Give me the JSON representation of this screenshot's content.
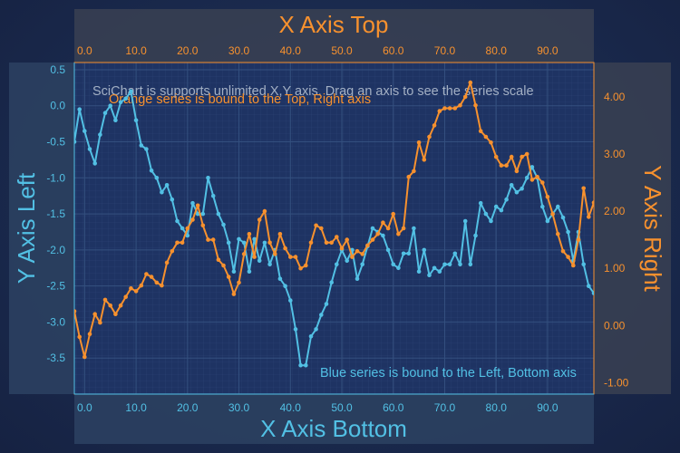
{
  "chart_data": {
    "type": "line",
    "axes": {
      "x_top": {
        "title": "X Axis Top",
        "range": [
          -2,
          99
        ],
        "ticks": [
          "0.0",
          "10.0",
          "20.0",
          "30.0",
          "40.0",
          "50.0",
          "60.0",
          "70.0",
          "80.0",
          "90.0"
        ],
        "color": "#f7912e"
      },
      "x_bottom": {
        "title": "X Axis Bottom",
        "range": [
          -2,
          99
        ],
        "ticks": [
          "0.0",
          "10.0",
          "20.0",
          "30.0",
          "40.0",
          "50.0",
          "60.0",
          "70.0",
          "80.0",
          "90.0"
        ],
        "color": "#52c0e4"
      },
      "y_left": {
        "title": "Y Axis Left",
        "range": [
          -4.0,
          0.6
        ],
        "ticks": [
          "0.5",
          "0.0",
          "-0.5",
          "-1.0",
          "-1.5",
          "-2.0",
          "-2.5",
          "-3.0",
          "-3.5"
        ],
        "color": "#52c0e4"
      },
      "y_right": {
        "title": "Y Axis Right",
        "range": [
          -1.2,
          4.6
        ],
        "ticks": [
          "4.00",
          "3.00",
          "2.00",
          "1.00",
          "0.00",
          "-1.00"
        ],
        "color": "#f7912e"
      }
    },
    "annotations": [
      "SciChart is supports unlimited X,Y axis. Drag an axis to see the series scale",
      "Orange series is bound to the Top, Right axis",
      "Blue series is bound to the Left, Bottom axis"
    ],
    "series": [
      {
        "color": "#52c0e4",
        "x": [
          -2,
          -1,
          0,
          1,
          2,
          3,
          4,
          5,
          6,
          7,
          8,
          9,
          10,
          11,
          12,
          13,
          14,
          15,
          16,
          17,
          18,
          19,
          20,
          21,
          22,
          23,
          24,
          25,
          26,
          27,
          28,
          29,
          30,
          31,
          32,
          33,
          34,
          35,
          36,
          37,
          38,
          39,
          40,
          41,
          42,
          43,
          44,
          45,
          46,
          47,
          48,
          49,
          50,
          51,
          52,
          53,
          54,
          55,
          56,
          57,
          58,
          59,
          60,
          61,
          62,
          63,
          64,
          65,
          66,
          67,
          68,
          69,
          70,
          71,
          72,
          73,
          74,
          75,
          76,
          77,
          78,
          79,
          80,
          81,
          82,
          83,
          84,
          85,
          86,
          87,
          88,
          89,
          90,
          91,
          92,
          93,
          94,
          95,
          96,
          97,
          98,
          99
        ],
        "y": [
          -0.5,
          -0.05,
          -0.35,
          -0.6,
          -0.8,
          -0.4,
          -0.1,
          0.0,
          -0.2,
          0.05,
          0.1,
          0.2,
          -0.2,
          -0.55,
          -0.6,
          -0.9,
          -1.0,
          -1.2,
          -1.1,
          -1.3,
          -1.6,
          -1.7,
          -1.8,
          -1.35,
          -1.5,
          -1.5,
          -1.0,
          -1.25,
          -1.5,
          -1.65,
          -1.9,
          -2.3,
          -1.85,
          -1.9,
          -2.3,
          -1.85,
          -2.15,
          -1.9,
          -2.2,
          -2.0,
          -2.4,
          -2.5,
          -2.7,
          -3.1,
          -3.6,
          -3.6,
          -3.2,
          -3.1,
          -2.9,
          -2.75,
          -2.45,
          -2.2,
          -2.0,
          -2.15,
          -2.0,
          -2.4,
          -2.2,
          -1.95,
          -1.7,
          -1.75,
          -1.8,
          -2.0,
          -2.2,
          -2.25,
          -2.05,
          -2.05,
          -1.7,
          -2.3,
          -2.0,
          -2.35,
          -2.25,
          -2.3,
          -2.2,
          -2.2,
          -2.05,
          -2.2,
          -1.6,
          -2.2,
          -1.8,
          -1.35,
          -1.5,
          -1.6,
          -1.4,
          -1.45,
          -1.3,
          -1.1,
          -1.2,
          -1.15,
          -1.0,
          -0.85,
          -1.0,
          -1.4,
          -1.6,
          -1.5,
          -1.4,
          -1.55,
          -1.75,
          -2.15,
          -1.75,
          -2.2,
          -2.5,
          -2.6
        ]
      },
      {
        "color": "#f7912e",
        "x": [
          -2,
          -1,
          0,
          1,
          2,
          3,
          4,
          5,
          6,
          7,
          8,
          9,
          10,
          11,
          12,
          13,
          14,
          15,
          16,
          17,
          18,
          19,
          20,
          21,
          22,
          23,
          24,
          25,
          26,
          27,
          28,
          29,
          30,
          31,
          32,
          33,
          34,
          35,
          36,
          37,
          38,
          39,
          40,
          41,
          42,
          43,
          44,
          45,
          46,
          47,
          48,
          49,
          50,
          51,
          52,
          53,
          54,
          55,
          56,
          57,
          58,
          59,
          60,
          61,
          62,
          63,
          64,
          65,
          66,
          67,
          68,
          69,
          70,
          71,
          72,
          73,
          74,
          75,
          76,
          77,
          78,
          79,
          80,
          81,
          82,
          83,
          84,
          85,
          86,
          87,
          88,
          89,
          90,
          91,
          92,
          93,
          94,
          95,
          96,
          97,
          98,
          99
        ],
        "y": [
          0.25,
          -0.2,
          -0.55,
          -0.15,
          0.2,
          0.05,
          0.45,
          0.35,
          0.2,
          0.35,
          0.5,
          0.65,
          0.6,
          0.7,
          0.9,
          0.85,
          0.75,
          0.7,
          1.1,
          1.3,
          1.45,
          1.45,
          1.7,
          1.85,
          2.1,
          1.75,
          1.5,
          1.5,
          1.15,
          1.05,
          0.85,
          0.55,
          0.75,
          1.25,
          1.6,
          1.2,
          1.85,
          2.0,
          1.45,
          1.25,
          1.6,
          1.35,
          1.2,
          1.2,
          1.0,
          1.05,
          1.45,
          1.75,
          1.7,
          1.45,
          1.45,
          1.55,
          1.35,
          1.5,
          1.2,
          1.3,
          1.25,
          1.4,
          1.5,
          1.6,
          1.8,
          1.7,
          1.95,
          1.6,
          1.7,
          2.6,
          2.7,
          3.2,
          2.9,
          3.3,
          3.5,
          3.75,
          3.8,
          3.8,
          3.8,
          3.85,
          4.0,
          4.25,
          3.85,
          3.4,
          3.3,
          3.2,
          2.95,
          2.8,
          2.8,
          2.95,
          2.7,
          2.95,
          3.0,
          2.55,
          2.6,
          2.5,
          2.25,
          1.95,
          1.6,
          1.3,
          1.2,
          1.05,
          1.5,
          2.4,
          1.9,
          2.15
        ]
      }
    ]
  }
}
